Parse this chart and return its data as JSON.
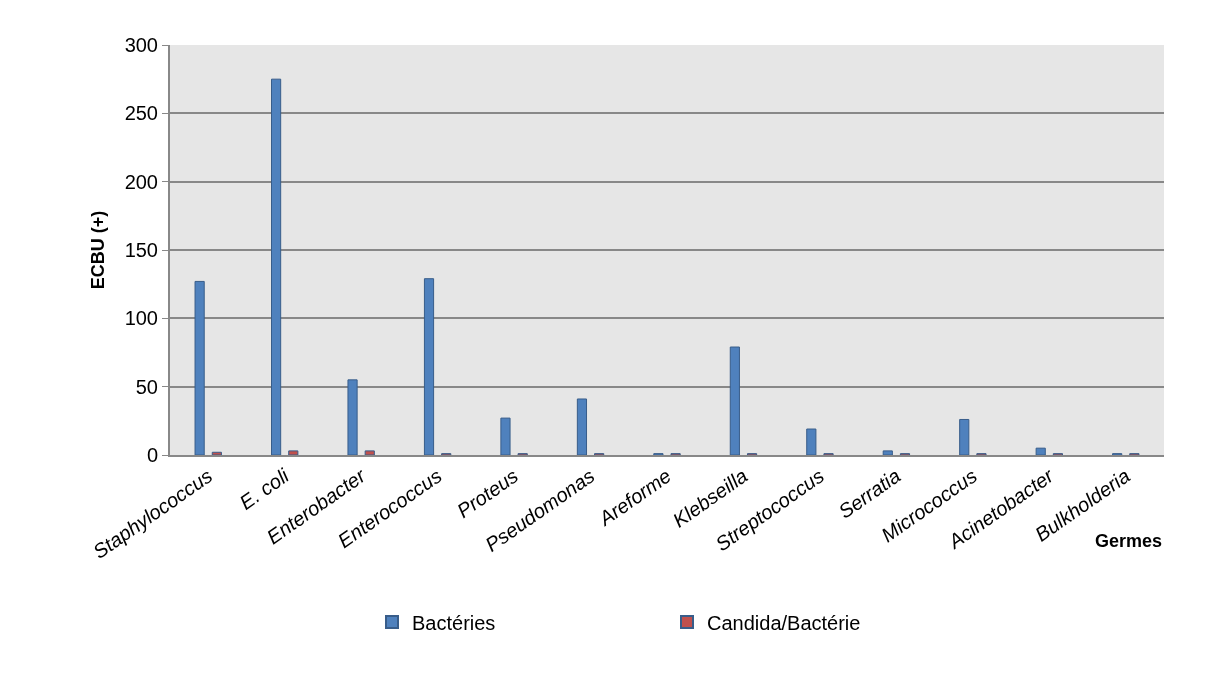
{
  "chart_data": {
    "type": "bar",
    "xlabel": "Germes",
    "ylabel": "ECBU (+)",
    "categories": [
      "Staphylococcus",
      "E. coli",
      "Enterobacter",
      "Enterococcus",
      "Proteus",
      "Pseudomonas",
      "Areforme",
      "Klebseilla",
      "Streptococcus",
      "Serratia",
      "Micrococcus",
      "Acinetobacter",
      "Bulkholderia"
    ],
    "series": [
      {
        "name": "Bactéries",
        "color": "#4f81bd",
        "values": [
          127,
          275,
          55,
          129,
          27,
          41,
          1,
          79,
          19,
          3,
          26,
          5,
          1
        ]
      },
      {
        "name": "Candida/Bactérie",
        "color": "#c0504d",
        "values": [
          2,
          3,
          3,
          1,
          1,
          1,
          1,
          1,
          1,
          1,
          1,
          1,
          1
        ]
      }
    ],
    "ylim": [
      0,
      300
    ],
    "yticks": [
      0,
      50,
      100,
      150,
      200,
      250,
      300
    ],
    "grid": "y",
    "legend": "bottom"
  }
}
